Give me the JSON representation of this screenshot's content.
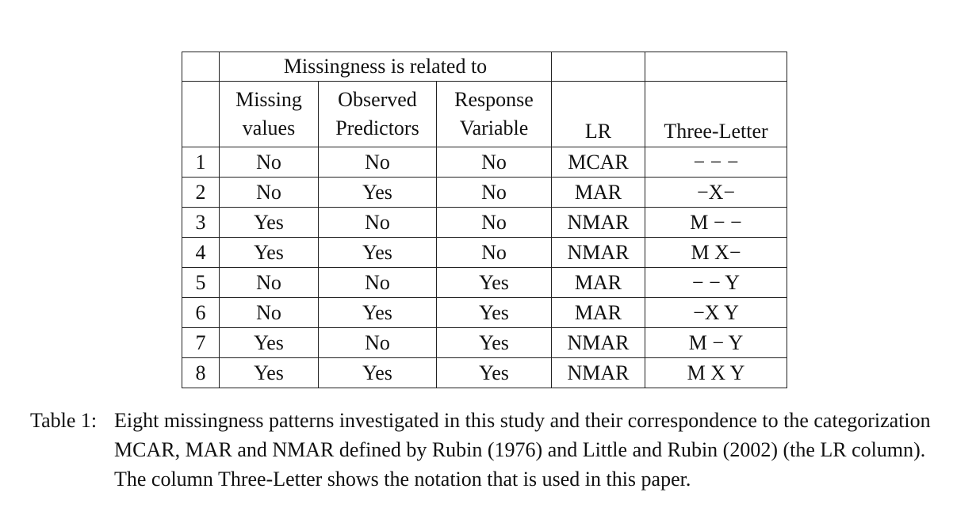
{
  "table": {
    "group_header": "Missingness is related to",
    "columns": [
      {
        "line1": "",
        "line2": ""
      },
      {
        "line1": "Missing",
        "line2": "values"
      },
      {
        "line1": "Observed",
        "line2": "Predictors"
      },
      {
        "line1": "Response",
        "line2": "Variable"
      },
      {
        "line1": "",
        "line2": "LR"
      },
      {
        "line1": "",
        "line2": "Three-Letter"
      }
    ],
    "rows": [
      [
        "1",
        "No",
        "No",
        "No",
        "MCAR",
        "− − −"
      ],
      [
        "2",
        "No",
        "Yes",
        "No",
        "MAR",
        "−X−"
      ],
      [
        "3",
        "Yes",
        "No",
        "No",
        "NMAR",
        "M − −"
      ],
      [
        "4",
        "Yes",
        "Yes",
        "No",
        "NMAR",
        "M X−"
      ],
      [
        "5",
        "No",
        "No",
        "Yes",
        "MAR",
        "− − Y"
      ],
      [
        "6",
        "No",
        "Yes",
        "Yes",
        "MAR",
        "−X Y"
      ],
      [
        "7",
        "Yes",
        "No",
        "Yes",
        "NMAR",
        "M − Y"
      ],
      [
        "8",
        "Yes",
        "Yes",
        "Yes",
        "NMAR",
        "M X Y"
      ]
    ]
  },
  "caption": {
    "label": "Table 1:",
    "text": "Eight missingness patterns investigated in this study and their correspondence to the categorization MCAR, MAR and NMAR defined by Rubin (1976) and Little and Rubin (2002) (the LR column). The column Three-Letter shows the notation that is used in this paper."
  }
}
